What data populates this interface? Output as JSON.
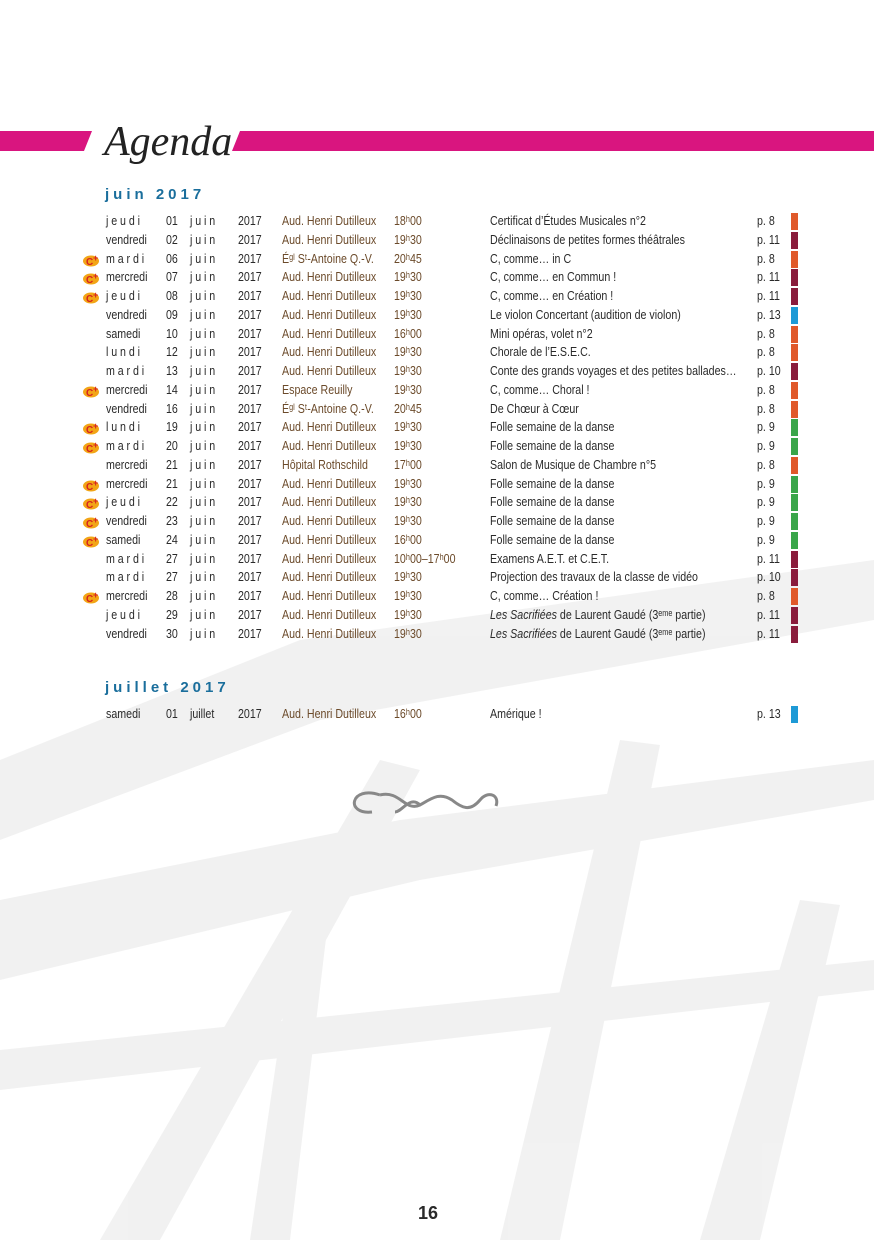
{
  "header": {
    "title": "Agenda"
  },
  "sections": [
    {
      "heading": "juin 2017",
      "rows": [
        {
          "day": "jeudi",
          "date": "01",
          "month": "juin",
          "year": "2017",
          "venue": "Aud. Henri Dutilleux",
          "time": "18ʰ00",
          "event": "Certificat d’Études Musicales n°2",
          "page": "p. 8",
          "color": "#e0592a",
          "icon": false
        },
        {
          "day": "vendredi",
          "date": "02",
          "month": "juin",
          "year": "2017",
          "venue": "Aud. Henri Dutilleux",
          "time": "19ʰ30",
          "event": "Déclinaisons de petites formes théâtrales",
          "page": "p. 11",
          "color": "#8a1c3c",
          "icon": false
        },
        {
          "day": "mardi",
          "date": "06",
          "month": "juin",
          "year": "2017",
          "venue": "Éᵍˡ Sᵗ-Antoine Q.-V.",
          "time": "20ʰ45",
          "event": "C, comme… in C",
          "page": "p. 8",
          "color": "#e0592a",
          "icon": true
        },
        {
          "day": "mercredi",
          "date": "07",
          "month": "juin",
          "year": "2017",
          "venue": "Aud. Henri Dutilleux",
          "time": "19ʰ30",
          "event": "C, comme… en Commun !",
          "page": "p. 11",
          "color": "#8a1c3c",
          "icon": true
        },
        {
          "day": "jeudi",
          "date": "08",
          "month": "juin",
          "year": "2017",
          "venue": "Aud. Henri Dutilleux",
          "time": "19ʰ30",
          "event": "C, comme… en Création !",
          "page": "p. 11",
          "color": "#8a1c3c",
          "icon": true
        },
        {
          "day": "vendredi",
          "date": "09",
          "month": "juin",
          "year": "2017",
          "venue": "Aud. Henri Dutilleux",
          "time": "19ʰ30",
          "event": "Le violon Concertant (audition de violon)",
          "page": "p. 13",
          "color": "#1e9ad6",
          "icon": false
        },
        {
          "day": "samedi",
          "date": "10",
          "month": "juin",
          "year": "2017",
          "venue": "Aud. Henri Dutilleux",
          "time": "16ʰ00",
          "event": "Mini opéras, volet n°2",
          "page": "p. 8",
          "color": "#e0592a",
          "icon": false
        },
        {
          "day": "lundi",
          "date": "12",
          "month": "juin",
          "year": "2017",
          "venue": "Aud. Henri Dutilleux",
          "time": "19ʰ30",
          "event": "Chorale de l’E.S.E.C.",
          "page": "p. 8",
          "color": "#e0592a",
          "icon": false
        },
        {
          "day": "mardi",
          "date": "13",
          "month": "juin",
          "year": "2017",
          "venue": "Aud. Henri Dutilleux",
          "time": "19ʰ30",
          "event": "Conte des grands voyages et des petites ballades…",
          "page": "p. 10",
          "color": "#8a1c3c",
          "icon": false
        },
        {
          "day": "mercredi",
          "date": "14",
          "month": "juin",
          "year": "2017",
          "venue": "Espace Reuilly",
          "time": "19ʰ30",
          "event": "C, comme… Choral !",
          "page": "p. 8",
          "color": "#e0592a",
          "icon": true
        },
        {
          "day": "vendredi",
          "date": "16",
          "month": "juin",
          "year": "2017",
          "venue": "Éᵍˡ Sᵗ-Antoine Q.-V.",
          "time": "20ʰ45",
          "event": "De Chœur à Cœur",
          "page": "p. 8",
          "color": "#e0592a",
          "icon": false
        },
        {
          "day": "lundi",
          "date": "19",
          "month": "juin",
          "year": "2017",
          "venue": "Aud. Henri Dutilleux",
          "time": "19ʰ30",
          "event": "Folle semaine de la danse",
          "page": "p. 9",
          "color": "#3aa64a",
          "icon": true
        },
        {
          "day": "mardi",
          "date": "20",
          "month": "juin",
          "year": "2017",
          "venue": "Aud. Henri Dutilleux",
          "time": "19ʰ30",
          "event": "Folle semaine de la danse",
          "page": "p. 9",
          "color": "#3aa64a",
          "icon": true
        },
        {
          "day": "mercredi",
          "date": "21",
          "month": "juin",
          "year": "2017",
          "venue": "Hôpital Rothschild",
          "time": "17ʰ00",
          "event": "Salon de Musique de Chambre n°5",
          "page": "p. 8",
          "color": "#e0592a",
          "icon": false
        },
        {
          "day": "mercredi",
          "date": "21",
          "month": "juin",
          "year": "2017",
          "venue": "Aud. Henri Dutilleux",
          "time": "19ʰ30",
          "event": "Folle semaine de la danse",
          "page": "p. 9",
          "color": "#3aa64a",
          "icon": true
        },
        {
          "day": "jeudi",
          "date": "22",
          "month": "juin",
          "year": "2017",
          "venue": "Aud. Henri Dutilleux",
          "time": "19ʰ30",
          "event": "Folle semaine de la danse",
          "page": "p. 9",
          "color": "#3aa64a",
          "icon": true
        },
        {
          "day": "vendredi",
          "date": "23",
          "month": "juin",
          "year": "2017",
          "venue": "Aud. Henri Dutilleux",
          "time": "19ʰ30",
          "event": "Folle semaine de la danse",
          "page": "p. 9",
          "color": "#3aa64a",
          "icon": true
        },
        {
          "day": "samedi",
          "date": "24",
          "month": "juin",
          "year": "2017",
          "venue": "Aud. Henri Dutilleux",
          "time": "16ʰ00",
          "event": "Folle semaine de la danse",
          "page": "p. 9",
          "color": "#3aa64a",
          "icon": true
        },
        {
          "day": "mardi",
          "date": "27",
          "month": "juin",
          "year": "2017",
          "venue": "Aud. Henri Dutilleux",
          "time": "10ʰ00–17ʰ00",
          "event": "Examens A.E.T. et C.E.T.",
          "page": "p. 11",
          "color": "#8a1c3c",
          "icon": false
        },
        {
          "day": "mardi",
          "date": "27",
          "month": "juin",
          "year": "2017",
          "venue": "Aud. Henri Dutilleux",
          "time": "19ʰ30",
          "event": "Projection des travaux de la classe de vidéo",
          "page": "p. 10",
          "color": "#8a1c3c",
          "icon": false
        },
        {
          "day": "mercredi",
          "date": "28",
          "month": "juin",
          "year": "2017",
          "venue": "Aud. Henri Dutilleux",
          "time": "19ʰ30",
          "event": "C, comme… Création !",
          "page": "p. 8",
          "color": "#e0592a",
          "icon": true
        },
        {
          "day": "jeudi",
          "date": "29",
          "month": "juin",
          "year": "2017",
          "venue": "Aud. Henri Dutilleux",
          "time": "19ʰ30",
          "event_em": "Les Sacrifiées",
          "event": " de Laurent Gaudé (3ᵉᵐᵉ partie)",
          "page": "p. 11",
          "color": "#8a1c3c",
          "icon": false
        },
        {
          "day": "vendredi",
          "date": "30",
          "month": "juin",
          "year": "2017",
          "venue": "Aud. Henri Dutilleux",
          "time": "19ʰ30",
          "event_em": "Les Sacrifiées",
          "event": " de Laurent Gaudé (3ᵉᵐᵉ partie)",
          "page": "p. 11",
          "color": "#8a1c3c",
          "icon": false
        }
      ]
    },
    {
      "heading": "juillet 2017",
      "rows": [
        {
          "day": "samedi",
          "date": "01",
          "month": "juillet",
          "year": "2017",
          "venue": "Aud. Henri Dutilleux",
          "time": "16ʰ00",
          "event": "Amérique !",
          "page": "p. 13",
          "color": "#1e9ad6",
          "icon": false
        }
      ]
    }
  ],
  "footer": {
    "page_number": "16"
  }
}
